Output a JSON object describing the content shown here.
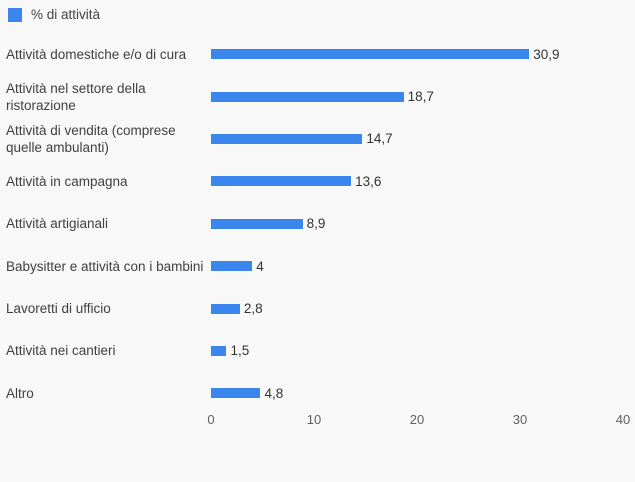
{
  "legend": {
    "label": "% di attività"
  },
  "chart_data": {
    "type": "bar",
    "orientation": "horizontal",
    "title": "",
    "xlabel": "",
    "ylabel": "",
    "series_name": "% di attività",
    "categories": [
      "Attività domestiche e/o di cura",
      "Attività nel settore della ristorazione",
      "Attività di vendita (comprese quelle ambulanti)",
      "Attività in campagna",
      "Attività artigianali",
      "Babysitter e attività con i bambini",
      "Lavoretti di ufficio",
      "Attività nei cantieri",
      "Altro"
    ],
    "values": [
      30.9,
      18.7,
      14.7,
      13.6,
      8.9,
      4,
      2.8,
      1.5,
      4.8
    ],
    "value_labels": [
      "30,9",
      "18,7",
      "14,7",
      "13,6",
      "8,9",
      "4",
      "2,8",
      "1,5",
      "4,8"
    ],
    "xlim": [
      0,
      40
    ],
    "xticks": [
      0,
      10,
      20,
      30,
      40
    ],
    "grid": false,
    "legend_position": "top-left",
    "bar_color": "#3a86ec",
    "background": "#f8f8f8",
    "label_color": "#404040",
    "value_label_color": "#333333",
    "tick_color": "#616161"
  }
}
